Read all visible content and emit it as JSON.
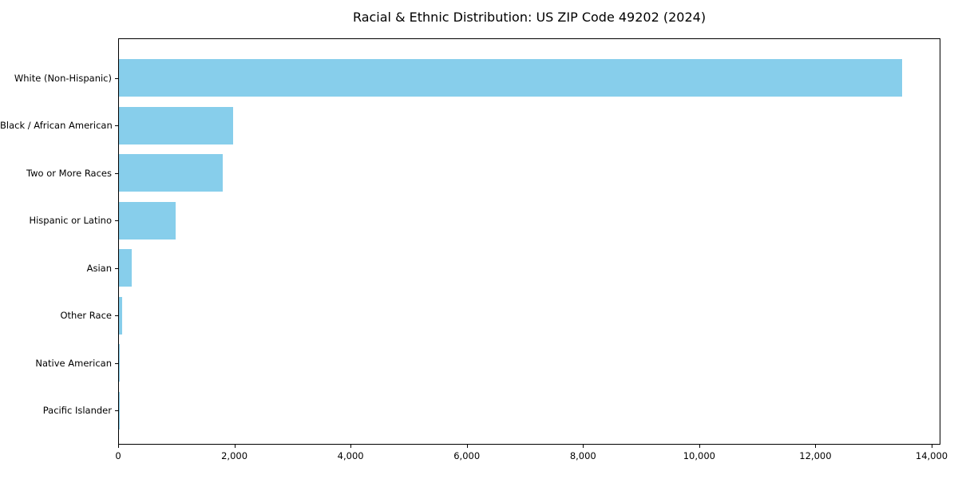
{
  "chart_data": {
    "type": "bar",
    "orientation": "horizontal",
    "title": "Racial & Ethnic Distribution: US ZIP Code 49202 (2024)",
    "categories": [
      "White (Non-Hispanic)",
      "Black / African American",
      "Two or More Races",
      "Hispanic or Latino",
      "Asian",
      "Other Race",
      "Native American",
      "Pacific Islander"
    ],
    "values": [
      13480,
      1970,
      1780,
      970,
      225,
      60,
      15,
      5
    ],
    "bar_color": "#87CEEB",
    "xlabel": "",
    "ylabel": "",
    "xlim": [
      0,
      14000
    ],
    "x_ticks": [
      0,
      2000,
      4000,
      6000,
      8000,
      10000,
      12000,
      14000
    ],
    "x_tick_labels": [
      "0",
      "2,000",
      "4,000",
      "6,000",
      "8,000",
      "10,000",
      "12,000",
      "14,000"
    ],
    "grid": false,
    "legend": "none",
    "background_color": "#ffffff",
    "text_color": "#000000"
  }
}
